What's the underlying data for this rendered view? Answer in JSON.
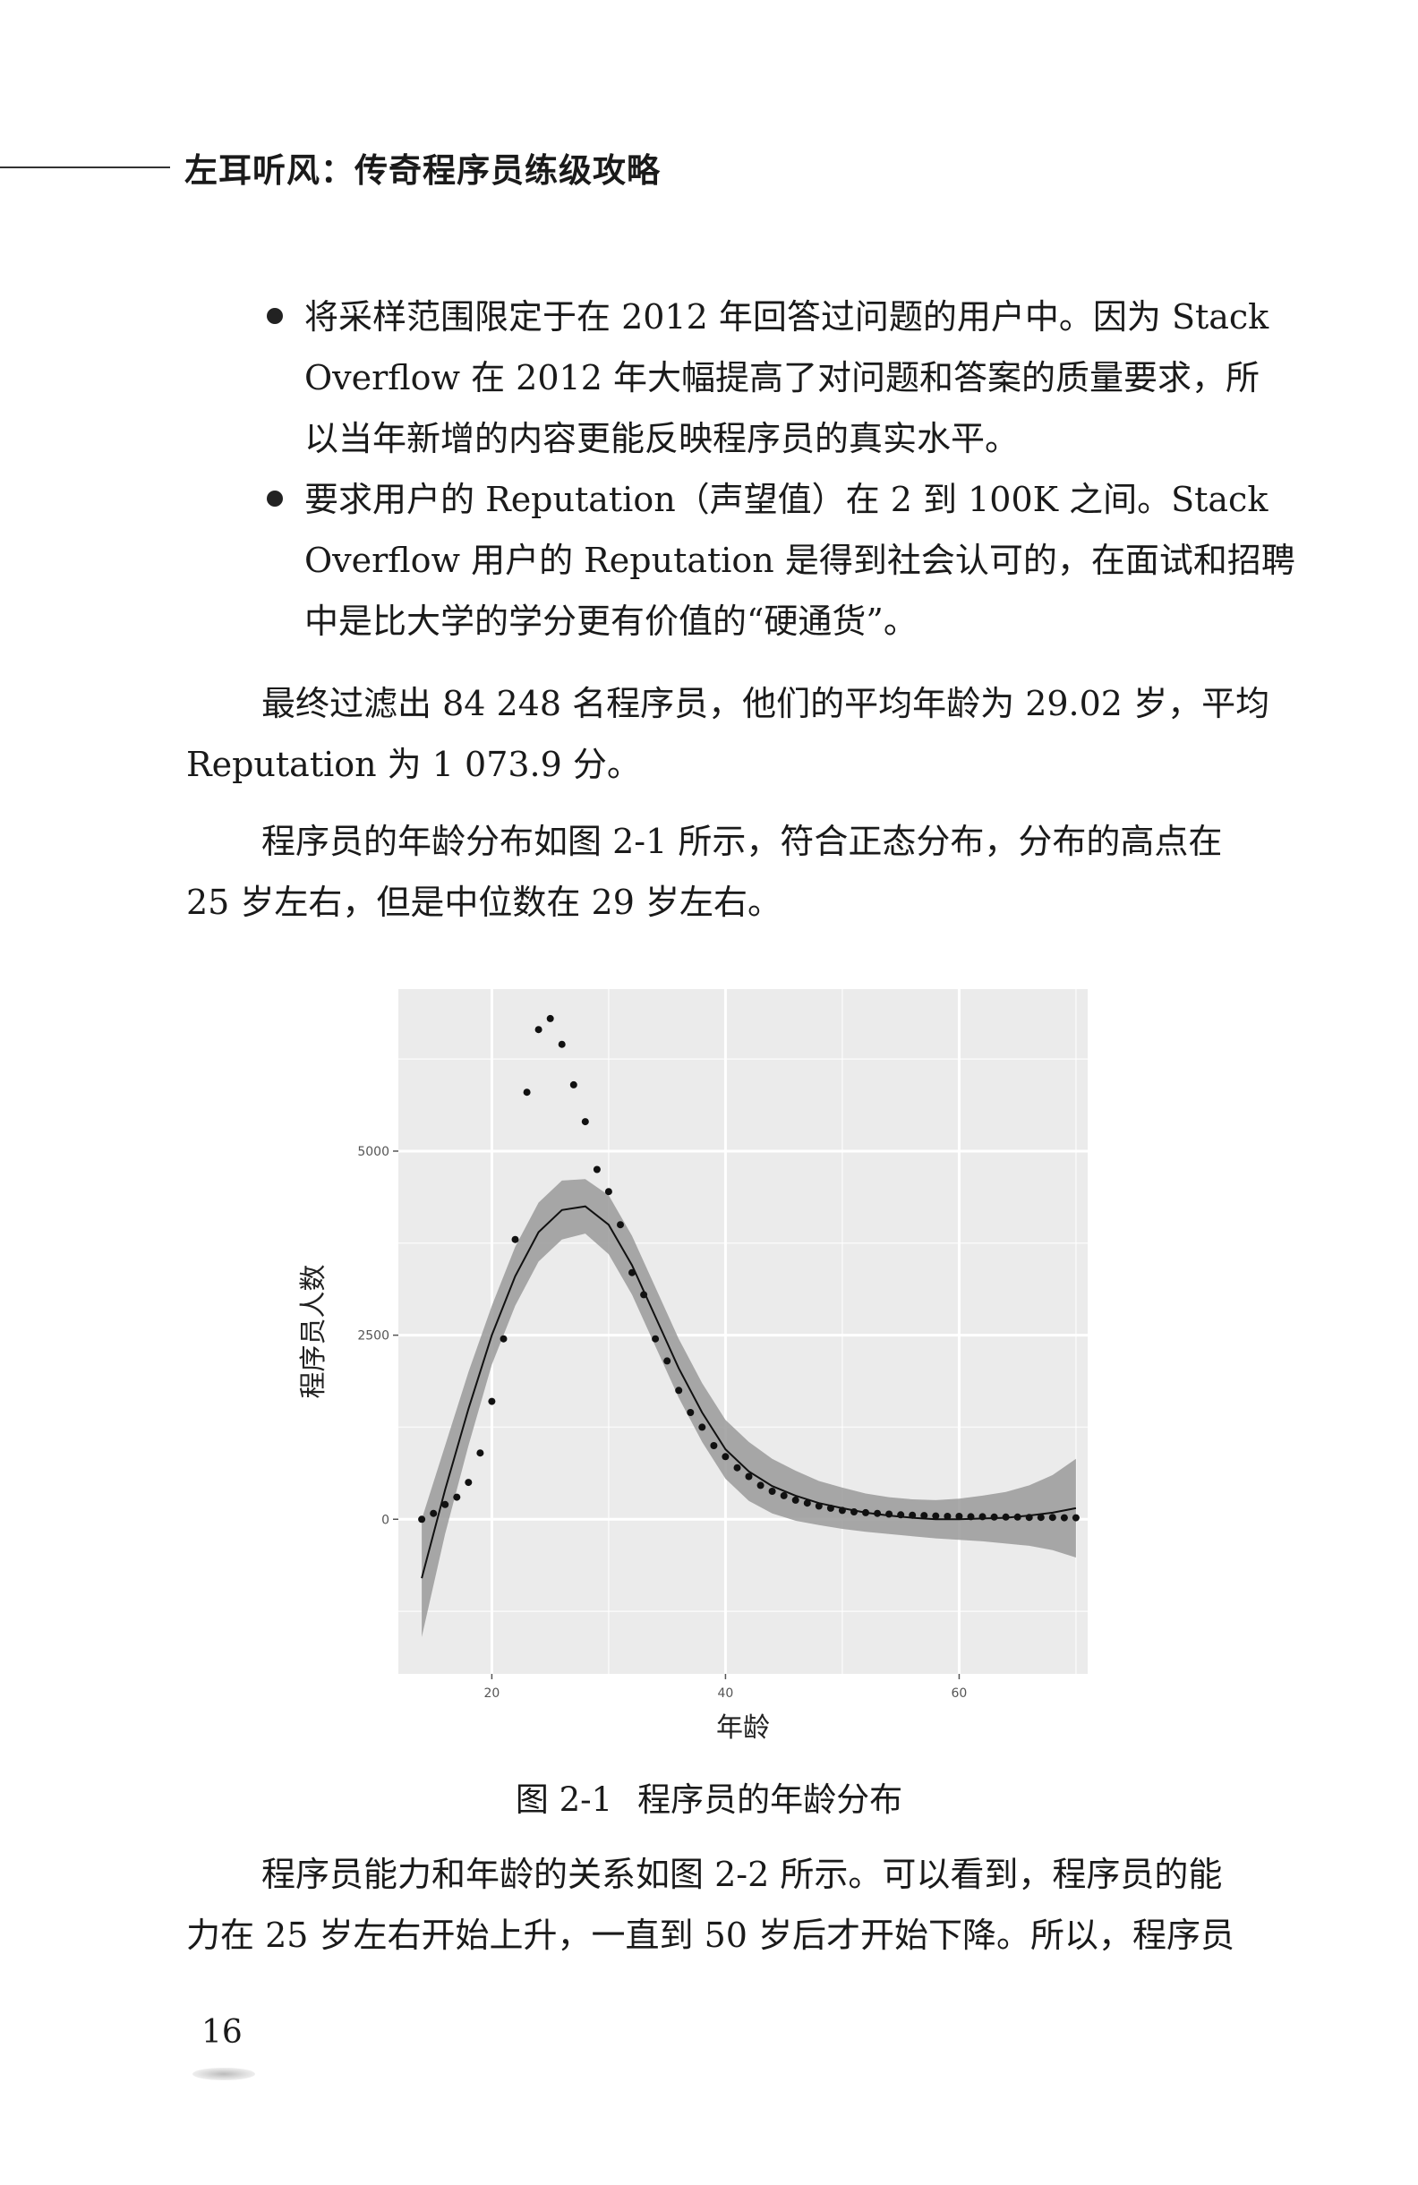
{
  "header": {
    "title": "左耳听风：传奇程序员练级攻略"
  },
  "bullets": [
    {
      "lines": [
        "将采样范围限定于在 2012 年回答过问题的用户中。因为 Stack",
        "Overflow 在 2012 年大幅提高了对问题和答案的质量要求，所",
        "以当年新增的内容更能反映程序员的真实水平。"
      ]
    },
    {
      "lines": [
        "要求用户的 Reputation（声望值）在 2 到 100K 之间。Stack",
        "Overflow 用户的 Reputation 是得到社会认可的，在面试和招聘",
        "中是比大学的学分更有价值的“硬通货”。"
      ]
    }
  ],
  "paragraphs": [
    {
      "lines": [
        "最终过滤出 84 248 名程序员，他们的平均年龄为 29.02 岁，平均",
        "Reputation 为 1 073.9 分。"
      ]
    },
    {
      "lines": [
        "程序员的年龄分布如图 2-1 所示，符合正态分布，分布的高点在",
        "25 岁左右，但是中位数在 29 岁左右。"
      ]
    },
    {
      "lines": [
        "程序员能力和年龄的关系如图 2-2 所示。可以看到，程序员的能",
        "力在 25 岁左右开始上升，一直到 50 岁后才开始下降。所以，程序员"
      ]
    }
  ],
  "figure": {
    "caption_number": "图 2-1",
    "caption_text": "程序员的年龄分布"
  },
  "page_number": "16",
  "colors": {
    "panel_bg": "#ebebeb",
    "grid": "#ffffff",
    "band": "#9a9a9a",
    "points": "#111111",
    "line": "#111111"
  },
  "chart_data": {
    "type": "scatter",
    "xlabel": "年龄",
    "ylabel": "程序员人数",
    "xlim": [
      12,
      71
    ],
    "ylim": [
      -2100,
      7200
    ],
    "x_ticks": [
      "20",
      "40",
      "60"
    ],
    "y_ticks": [
      "0",
      "2500",
      "5000"
    ],
    "x_tick_values": [
      20,
      40,
      60
    ],
    "y_tick_values": [
      0,
      2500,
      5000
    ],
    "grid": true,
    "series": [
      {
        "type": "points",
        "x": [
          14,
          15,
          16,
          17,
          18,
          19,
          20,
          21,
          22,
          23,
          24,
          25,
          26,
          27,
          28,
          29,
          30,
          31,
          32,
          33,
          34,
          35,
          36,
          37,
          38,
          39,
          40,
          41,
          42,
          43,
          44,
          45,
          46,
          47,
          48,
          49,
          50,
          51,
          52,
          53,
          54,
          55,
          56,
          57,
          58,
          59,
          60,
          61,
          62,
          63,
          64,
          65,
          66,
          67,
          68,
          69,
          70
        ],
        "y": [
          0,
          80,
          200,
          300,
          500,
          900,
          1600,
          2450,
          3800,
          5800,
          6650,
          6800,
          6450,
          5900,
          5400,
          4750,
          4450,
          4000,
          3350,
          3050,
          2450,
          2150,
          1750,
          1450,
          1250,
          1000,
          850,
          700,
          580,
          460,
          380,
          320,
          260,
          220,
          180,
          150,
          120,
          100,
          90,
          80,
          70,
          60,
          55,
          50,
          45,
          40,
          40,
          35,
          35,
          30,
          30,
          30,
          25,
          25,
          25,
          20,
          20
        ]
      },
      {
        "type": "smooth",
        "x": [
          14,
          16,
          18,
          20,
          22,
          24,
          26,
          28,
          30,
          32,
          34,
          36,
          38,
          40,
          42,
          44,
          46,
          48,
          50,
          52,
          54,
          56,
          58,
          60,
          62,
          64,
          66,
          68,
          70
        ],
        "y": [
          -800,
          400,
          1500,
          2500,
          3300,
          3900,
          4200,
          4250,
          4000,
          3450,
          2750,
          2050,
          1450,
          950,
          650,
          450,
          320,
          220,
          150,
          90,
          50,
          20,
          0,
          0,
          10,
          20,
          50,
          90,
          150
        ],
        "band_lower": [
          -1600,
          -200,
          1000,
          2100,
          2900,
          3500,
          3800,
          3880,
          3600,
          3050,
          2350,
          1650,
          1050,
          550,
          250,
          80,
          -20,
          -80,
          -130,
          -170,
          -200,
          -230,
          -260,
          -280,
          -300,
          -330,
          -360,
          -420,
          -520
        ],
        "band_upper": [
          0,
          1000,
          2000,
          2900,
          3700,
          4300,
          4600,
          4620,
          4400,
          3850,
          3150,
          2450,
          1850,
          1350,
          1050,
          820,
          660,
          520,
          430,
          350,
          300,
          270,
          260,
          280,
          320,
          370,
          460,
          600,
          820
        ]
      }
    ]
  }
}
